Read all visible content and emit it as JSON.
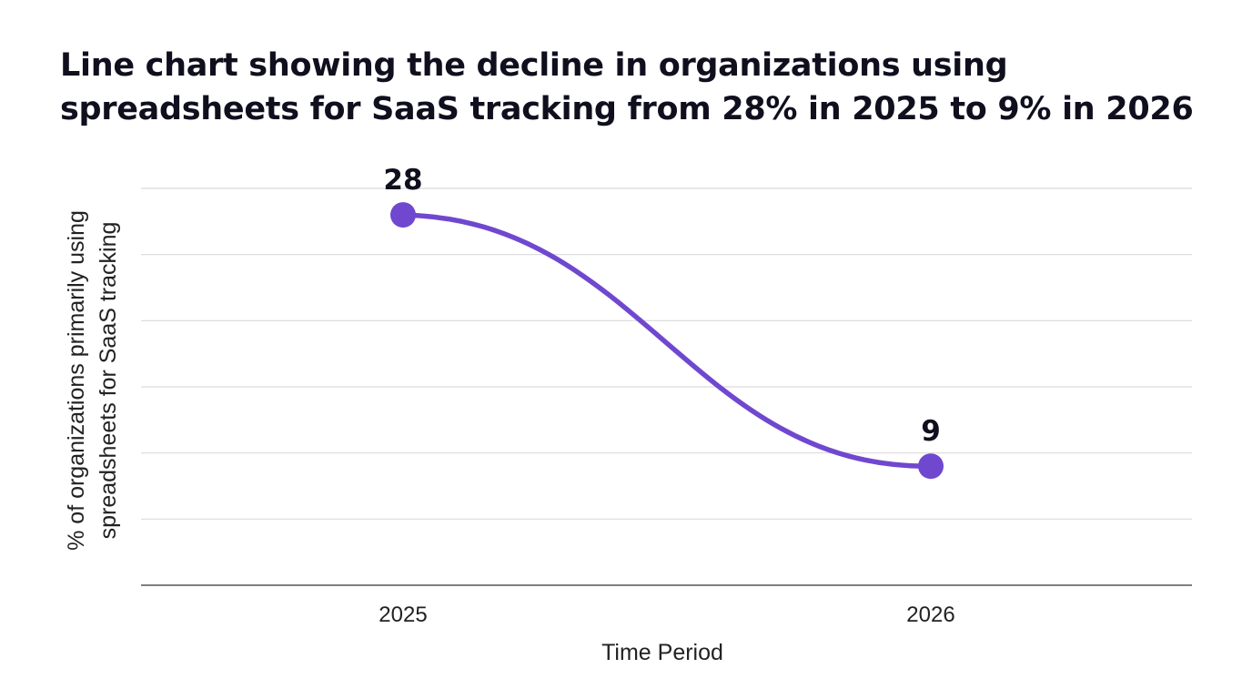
{
  "chart_data": {
    "type": "line",
    "title_lines": [
      "Line chart showing the decline in organizations using",
      "spreadsheets for SaaS tracking from 28% in 2025 to 9% in 2026"
    ],
    "xlabel": "Time Period",
    "ylabel_lines": [
      "% of organizations primarily using",
      "spreadsheets for SaaS tracking"
    ],
    "categories": [
      "2025",
      "2026"
    ],
    "series": [
      {
        "values": [
          28,
          9
        ],
        "color": "#7048cf"
      }
    ],
    "data_labels": [
      "28",
      "9"
    ],
    "ylim": [
      0,
      30
    ],
    "ytick_step": 5,
    "show_y_tick_labels": false,
    "grid": true,
    "line_style": "smooth",
    "colors": {
      "line": "#7048cf",
      "grid": "#d9d9de",
      "axis": "#555555",
      "text": "#0f0f1e"
    }
  }
}
